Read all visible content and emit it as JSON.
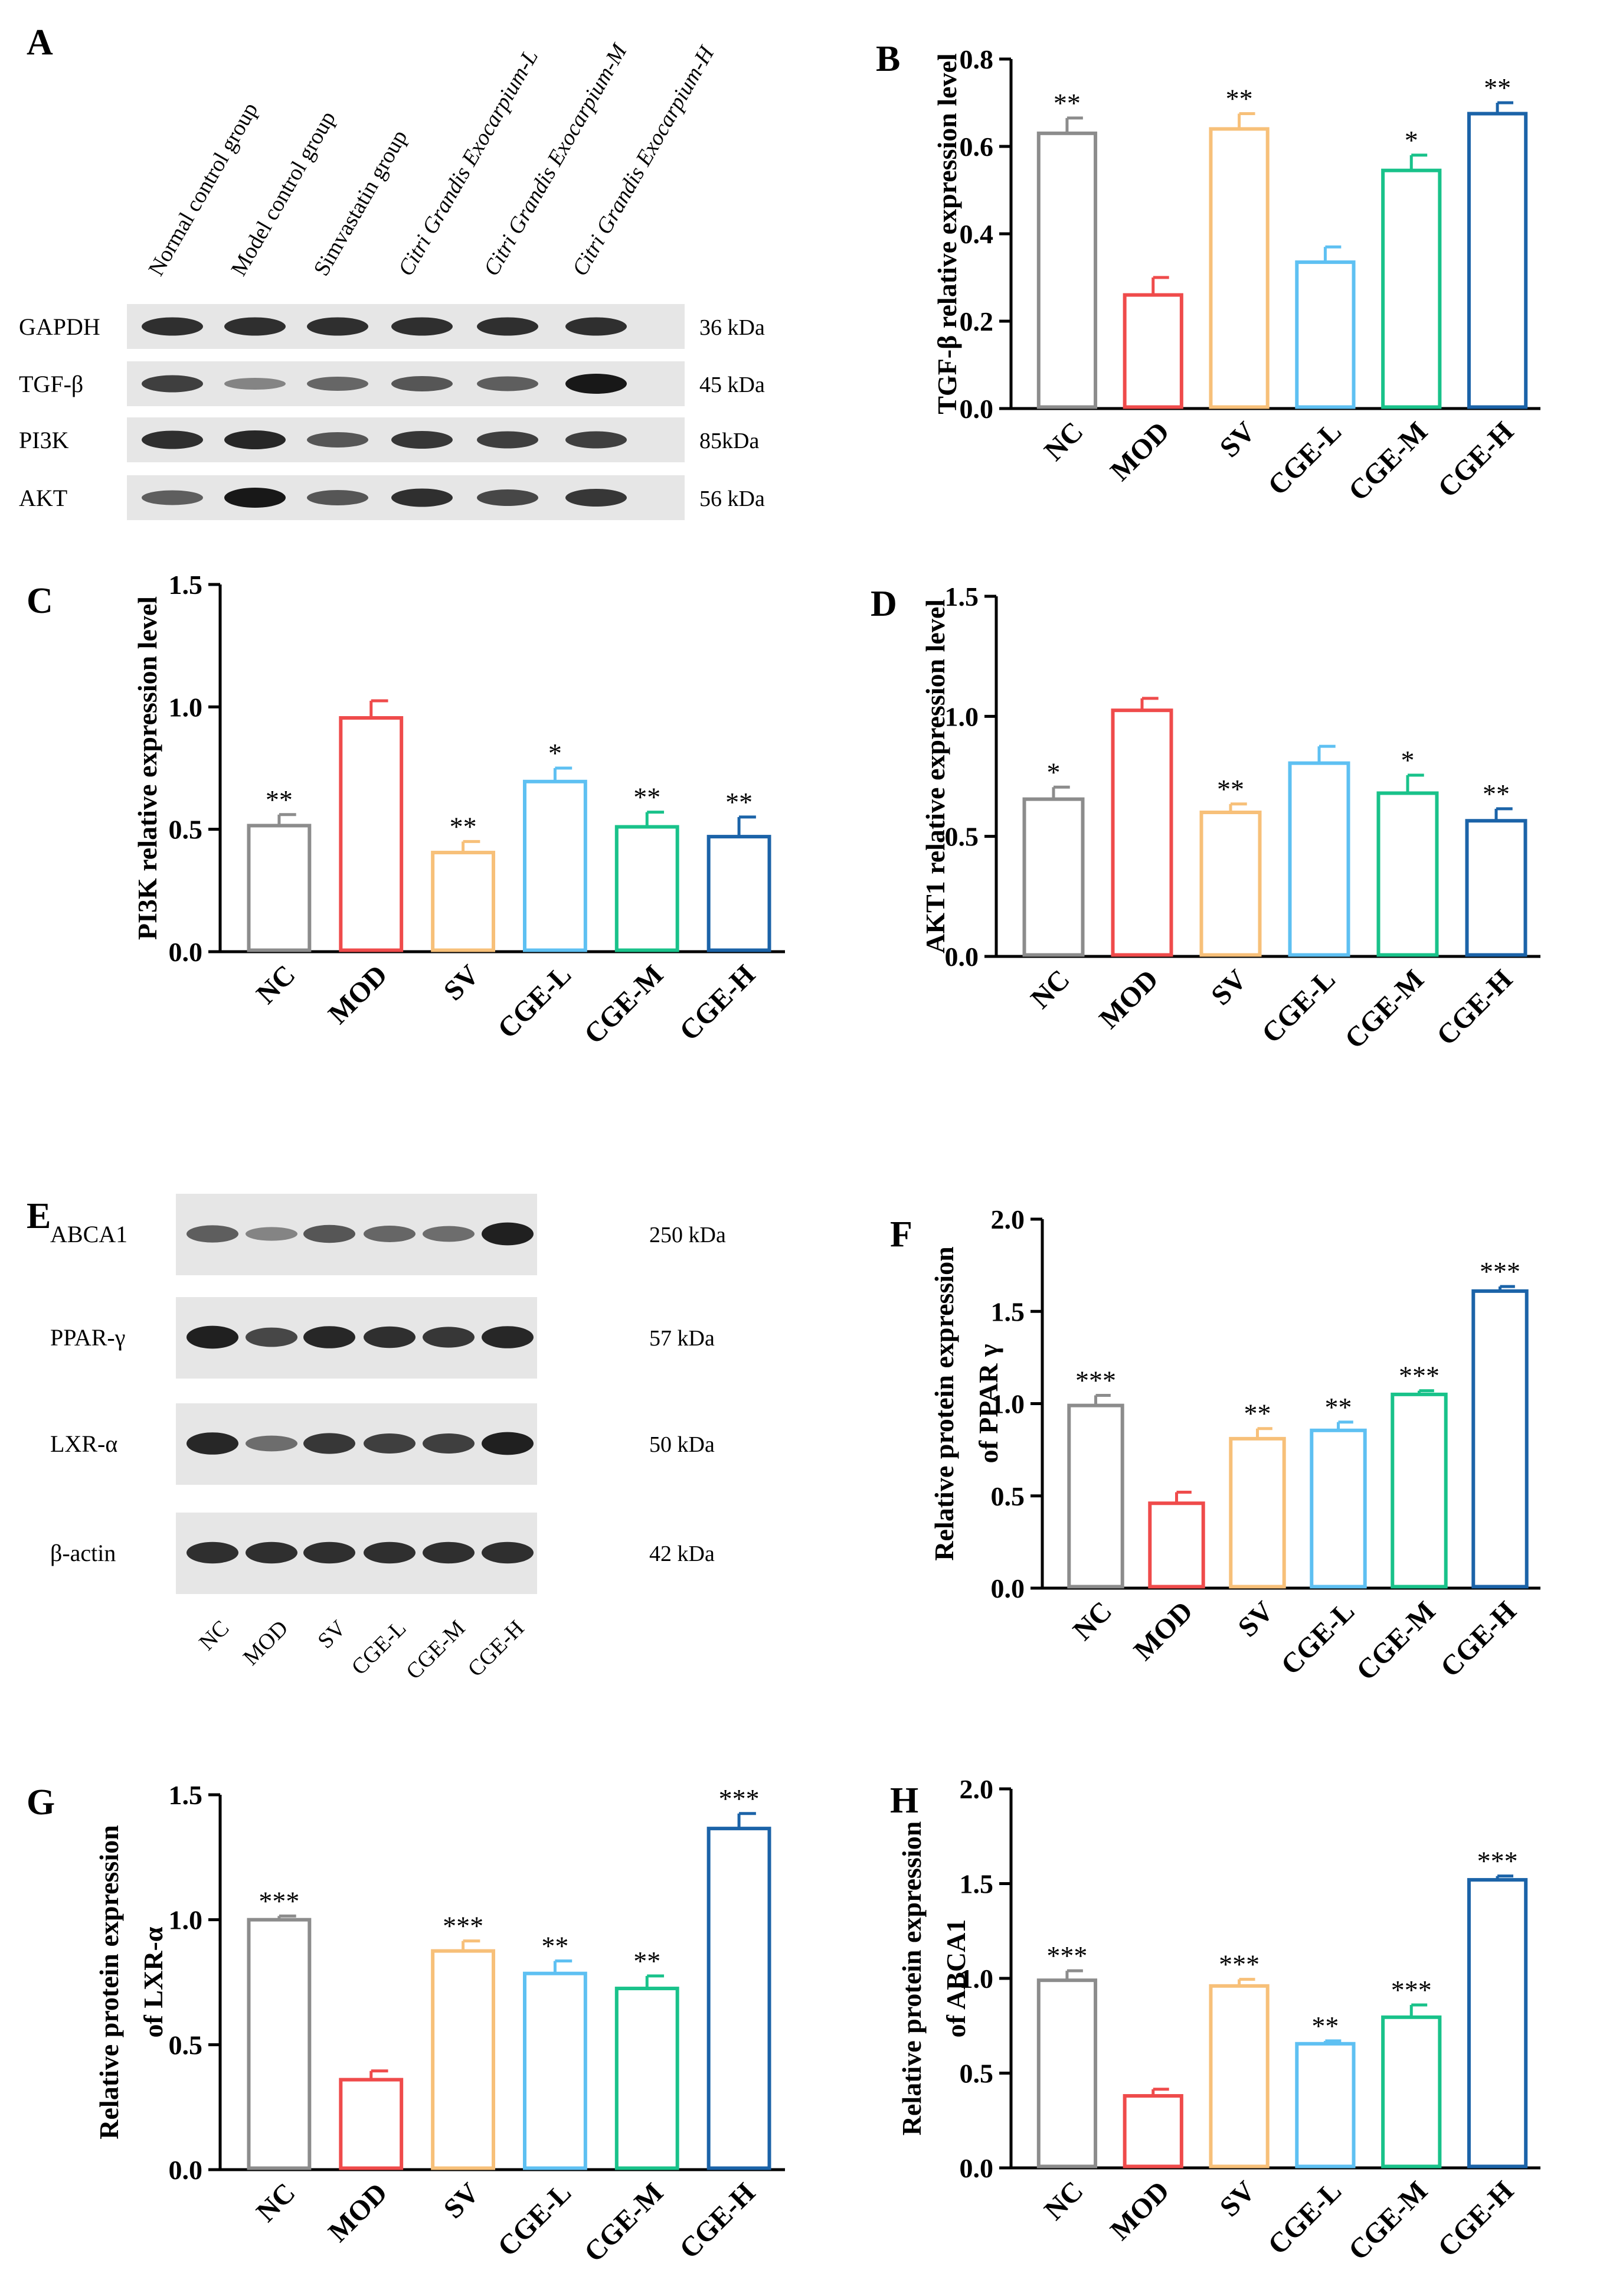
{
  "colors": {
    "NC": "#8c8c8c",
    "MOD": "#ef4b4b",
    "SV": "#f7c079",
    "CGE-L": "#5ec0f2",
    "CGE-M": "#19c28a",
    "CGE-H": "#1b63a8",
    "axis": "#000000",
    "band": "#181818",
    "blot_bg": "#e6e6e6"
  },
  "blot_a": {
    "letter": "A",
    "groups": [
      {
        "label": "Normal control group",
        "italic": false
      },
      {
        "label": "Model control group",
        "italic": false
      },
      {
        "label": "Simvastatin group",
        "italic": false
      },
      {
        "label": "Citri Grandis Exocarpium-L",
        "italic": true
      },
      {
        "label": "Citri Grandis Exocarpium-M",
        "italic": true
      },
      {
        "label": "Citri Grandis Exocarpium-H",
        "italic": true
      }
    ],
    "rows": [
      {
        "label": "GAPDH",
        "kda": "36 kDa",
        "intensity": [
          0.85,
          0.85,
          0.85,
          0.85,
          0.85,
          0.85
        ]
      },
      {
        "label": "TGF-β",
        "kda": "45 kDa",
        "intensity": [
          0.75,
          0.3,
          0.5,
          0.6,
          0.55,
          1.0
        ]
      },
      {
        "label": "PI3K",
        "kda": "85kDa",
        "intensity": [
          0.85,
          0.9,
          0.6,
          0.8,
          0.75,
          0.75
        ]
      },
      {
        "label": "AKT",
        "kda": "56 kDa",
        "intensity": [
          0.55,
          1.0,
          0.6,
          0.85,
          0.7,
          0.8
        ]
      }
    ]
  },
  "blot_e": {
    "letter": "E",
    "lanes": [
      "NC",
      "MOD",
      "SV",
      "CGE-L",
      "CGE-M",
      "CGE-H"
    ],
    "rows": [
      {
        "label": "ABCA1",
        "kda": "250 kDa",
        "intensity": [
          0.55,
          0.3,
          0.6,
          0.5,
          0.45,
          0.95
        ]
      },
      {
        "label": "PPAR-γ",
        "kda": "57 kDa",
        "intensity": [
          0.95,
          0.7,
          0.9,
          0.85,
          0.8,
          0.9
        ]
      },
      {
        "label": "LXR-α",
        "kda": "50 kDa",
        "intensity": [
          0.9,
          0.45,
          0.8,
          0.75,
          0.75,
          0.95
        ]
      },
      {
        "label": "β-actin",
        "kda": "42 kDa",
        "intensity": [
          0.85,
          0.85,
          0.85,
          0.85,
          0.85,
          0.85
        ]
      }
    ]
  },
  "chart_data": [
    {
      "letter": "B",
      "type": "bar",
      "ylabel": "TGF-β relative expression level",
      "categories": [
        "NC",
        "MOD",
        "SV",
        "CGE-L",
        "CGE-M",
        "CGE-H"
      ],
      "values": [
        0.63,
        0.26,
        0.64,
        0.335,
        0.545,
        0.675
      ],
      "errors": [
        0.035,
        0.04,
        0.035,
        0.035,
        0.035,
        0.025
      ],
      "significance": [
        "**",
        "",
        "**",
        "",
        "*",
        "**"
      ],
      "ylim": [
        0,
        0.8
      ],
      "yticks": [
        "0.0",
        "0.2",
        "0.4",
        "0.6",
        "0.8"
      ]
    },
    {
      "letter": "C",
      "type": "bar",
      "ylabel": "PI3K relative expression level",
      "categories": [
        "NC",
        "MOD",
        "SV",
        "CGE-L",
        "CGE-M",
        "CGE-H"
      ],
      "values": [
        0.515,
        0.955,
        0.405,
        0.695,
        0.51,
        0.47
      ],
      "errors": [
        0.045,
        0.07,
        0.045,
        0.055,
        0.06,
        0.08
      ],
      "significance": [
        "**",
        "",
        "**",
        "*",
        "**",
        "**"
      ],
      "ylim": [
        0,
        1.5
      ],
      "yticks": [
        "0.0",
        "0.5",
        "1.0",
        "1.5"
      ]
    },
    {
      "letter": "D",
      "type": "bar",
      "ylabel": "AKT1 relative expression level",
      "categories": [
        "NC",
        "MOD",
        "SV",
        "CGE-L",
        "CGE-M",
        "CGE-H"
      ],
      "values": [
        0.655,
        1.025,
        0.6,
        0.805,
        0.68,
        0.565
      ],
      "errors": [
        0.05,
        0.05,
        0.035,
        0.07,
        0.075,
        0.05
      ],
      "significance": [
        "*",
        "",
        "**",
        "",
        "*",
        "**"
      ],
      "ylim": [
        0,
        1.5
      ],
      "yticks": [
        "0.0",
        "0.5",
        "1.0",
        "1.5"
      ]
    },
    {
      "letter": "F",
      "type": "bar",
      "ylabel": "Relative protein expression",
      "ylabel2": "of PPAR γ",
      "categories": [
        "NC",
        "MOD",
        "SV",
        "CGE-L",
        "CGE-M",
        "CGE-H"
      ],
      "values": [
        0.99,
        0.46,
        0.81,
        0.855,
        1.05,
        1.61
      ],
      "errors": [
        0.055,
        0.06,
        0.055,
        0.045,
        0.02,
        0.025
      ],
      "significance": [
        "***",
        "",
        "**",
        "**",
        "***",
        "***"
      ],
      "ylim": [
        0,
        2.0
      ],
      "yticks": [
        "0.0",
        "0.5",
        "1.0",
        "1.5",
        "2.0"
      ]
    },
    {
      "letter": "G",
      "type": "bar",
      "ylabel": "Relative protein expression",
      "ylabel2": "of LXR-α",
      "categories": [
        "NC",
        "MOD",
        "SV",
        "CGE-L",
        "CGE-M",
        "CGE-H"
      ],
      "values": [
        1.0,
        0.36,
        0.875,
        0.785,
        0.725,
        1.365
      ],
      "errors": [
        0.015,
        0.035,
        0.04,
        0.05,
        0.05,
        0.06
      ],
      "significance": [
        "***",
        "",
        "***",
        "**",
        "**",
        "***"
      ],
      "ylim": [
        0,
        1.5
      ],
      "yticks": [
        "0.0",
        "0.5",
        "1.0",
        "1.5"
      ]
    },
    {
      "letter": "H",
      "type": "bar",
      "ylabel": "Relative protein expression",
      "ylabel2": "of ABCA1",
      "categories": [
        "NC",
        "MOD",
        "SV",
        "CGE-L",
        "CGE-M",
        "CGE-H"
      ],
      "values": [
        0.99,
        0.38,
        0.96,
        0.655,
        0.795,
        1.52
      ],
      "errors": [
        0.05,
        0.035,
        0.035,
        0.015,
        0.065,
        0.02
      ],
      "significance": [
        "***",
        "",
        "***",
        "**",
        "***",
        "***"
      ],
      "ylim": [
        0,
        2.0
      ],
      "yticks": [
        "0.0",
        "0.5",
        "1.0",
        "1.5",
        "2.0"
      ]
    }
  ]
}
